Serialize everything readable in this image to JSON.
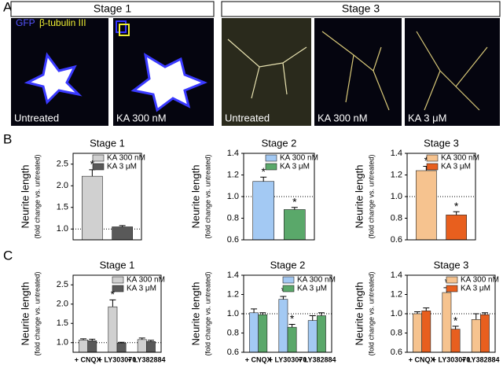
{
  "panel_a": {
    "label": "A",
    "stage1": "Stage 1",
    "stage3": "Stage 3",
    "legend": [
      "GFP",
      "β-tubulin III"
    ],
    "images": [
      "Untreated",
      "KA 300 nM",
      "Untreated",
      "KA 300 nM",
      "KA 3 μM"
    ]
  },
  "panel_labels": [
    "B",
    "C"
  ],
  "chart_data": [
    {
      "type": "bar",
      "title": "Stage 1",
      "ylabel": "Neurite length",
      "ylabel_sub": "(fold change vs. untreated)",
      "ylim": [
        0.75,
        2.75
      ],
      "yticks": [
        {
          "value": 1,
          "label": "1.0"
        },
        {
          "value": 1.5,
          "label": "1.5"
        },
        {
          "value": 2,
          "label": "2.0"
        },
        {
          "value": 2.5,
          "label": "2.5"
        }
      ],
      "reference_line": 1,
      "series": [
        {
          "name": "KA 300 nM",
          "color": "#d0d0d0",
          "values": [
            2.22
          ],
          "errors": [
            0.15
          ],
          "markers": [
            "*"
          ]
        },
        {
          "name": "KA 3 μM",
          "color": "#595959",
          "values": [
            1.05
          ],
          "errors": [
            0.03
          ],
          "markers": [
            null
          ]
        }
      ]
    },
    {
      "type": "bar",
      "title": "Stage 2",
      "ylabel": "Neurite length",
      "ylabel_sub": "(fold change vs. untreated)",
      "ylim": [
        0.6,
        1.4
      ],
      "yticks": [
        0.6,
        0.8,
        {
          "value": 1,
          "label": "1.0"
        },
        1.2,
        1.4
      ],
      "reference_line": 1,
      "series": [
        {
          "name": "KA 300 nM",
          "color": "#a3c9f3",
          "values": [
            1.14
          ],
          "errors": [
            0.04
          ],
          "markers": [
            "*"
          ]
        },
        {
          "name": "KA 3 μM",
          "color": "#5aa86a",
          "values": [
            0.88
          ],
          "errors": [
            0.02
          ],
          "markers": [
            "*"
          ]
        }
      ]
    },
    {
      "type": "bar",
      "title": "Stage 3",
      "ylabel": "Neurite length",
      "ylabel_sub": "(fold change vs. untreated)",
      "ylim": [
        0.6,
        1.4
      ],
      "yticks": [
        0.6,
        0.8,
        {
          "value": 1,
          "label": "1.0"
        },
        1.2,
        1.4
      ],
      "reference_line": 1,
      "series": [
        {
          "name": "KA 300 nM",
          "color": "#f6c38f",
          "values": [
            1.24
          ],
          "errors": [
            0.04
          ],
          "markers": [
            "*"
          ]
        },
        {
          "name": "KA 3 μM",
          "color": "#e85f1e",
          "values": [
            0.83
          ],
          "errors": [
            0.03
          ],
          "markers": [
            "*"
          ]
        }
      ]
    },
    {
      "type": "bar",
      "title": "Stage 1",
      "ylabel": "Neurite length",
      "ylabel_sub": "(fold change vs. untreated)",
      "ylim": [
        0.75,
        2.75
      ],
      "yticks": [
        {
          "value": 1,
          "label": "1.0"
        },
        {
          "value": 1.5,
          "label": "1.5"
        },
        {
          "value": 2,
          "label": "2.0"
        },
        {
          "value": 2.5,
          "label": "2.5"
        }
      ],
      "reference_line": 1,
      "categories": [
        "+ CNQX",
        "+ LY303070",
        "+ LY382884"
      ],
      "series": [
        {
          "name": "KA 300 nM",
          "color": "#d0d0d0",
          "values": [
            1.07,
            1.93,
            1.08
          ],
          "errors": [
            0.03,
            0.18,
            0.04
          ],
          "markers": [
            null,
            "*",
            null
          ]
        },
        {
          "name": "KA 3 μM",
          "color": "#595959",
          "values": [
            1.05,
            0.99,
            1.03
          ],
          "errors": [
            0.04,
            0.02,
            0.03
          ],
          "markers": [
            null,
            null,
            null
          ]
        }
      ]
    },
    {
      "type": "bar",
      "title": "Stage 2",
      "ylabel": "Neurite length",
      "ylabel_sub": "(fold change vs. untreated)",
      "ylim": [
        0.6,
        1.4
      ],
      "yticks": [
        0.6,
        0.8,
        {
          "value": 1,
          "label": "1.0"
        },
        1.2,
        1.4
      ],
      "reference_line": 1,
      "categories": [
        "+ CNQX",
        "+ LY303070",
        "+ LY382884"
      ],
      "series": [
        {
          "name": "KA 300 nM",
          "color": "#a3c9f3",
          "values": [
            1.01,
            1.15,
            0.93
          ],
          "errors": [
            0.04,
            0.03,
            0.05
          ],
          "markers": [
            null,
            "*",
            null
          ]
        },
        {
          "name": "KA 3 μM",
          "color": "#5aa86a",
          "values": [
            0.99,
            0.86,
            0.98
          ],
          "errors": [
            0.02,
            0.03,
            0.03
          ],
          "markers": [
            null,
            "*",
            null
          ]
        }
      ]
    },
    {
      "type": "bar",
      "title": "Stage 3",
      "ylabel": "Neurite length",
      "ylabel_sub": "(fold change vs. untreated)",
      "ylim": [
        0.6,
        1.4
      ],
      "yticks": [
        0.6,
        0.8,
        {
          "value": 1,
          "label": "1.0"
        },
        1.2,
        1.4
      ],
      "reference_line": 1,
      "categories": [
        "+ CNQX",
        "+ LY303070",
        "+ LY382884"
      ],
      "series": [
        {
          "name": "KA 300 nM",
          "color": "#f6c38f",
          "values": [
            1.0,
            1.22,
            0.94
          ],
          "errors": [
            0.02,
            0.05,
            0.06
          ],
          "markers": [
            null,
            "*",
            null
          ]
        },
        {
          "name": "KA 3 μM",
          "color": "#e85f1e",
          "values": [
            1.03,
            0.84,
            0.99
          ],
          "errors": [
            0.03,
            0.03,
            0.02
          ],
          "markers": [
            null,
            "*",
            null
          ]
        }
      ]
    }
  ]
}
